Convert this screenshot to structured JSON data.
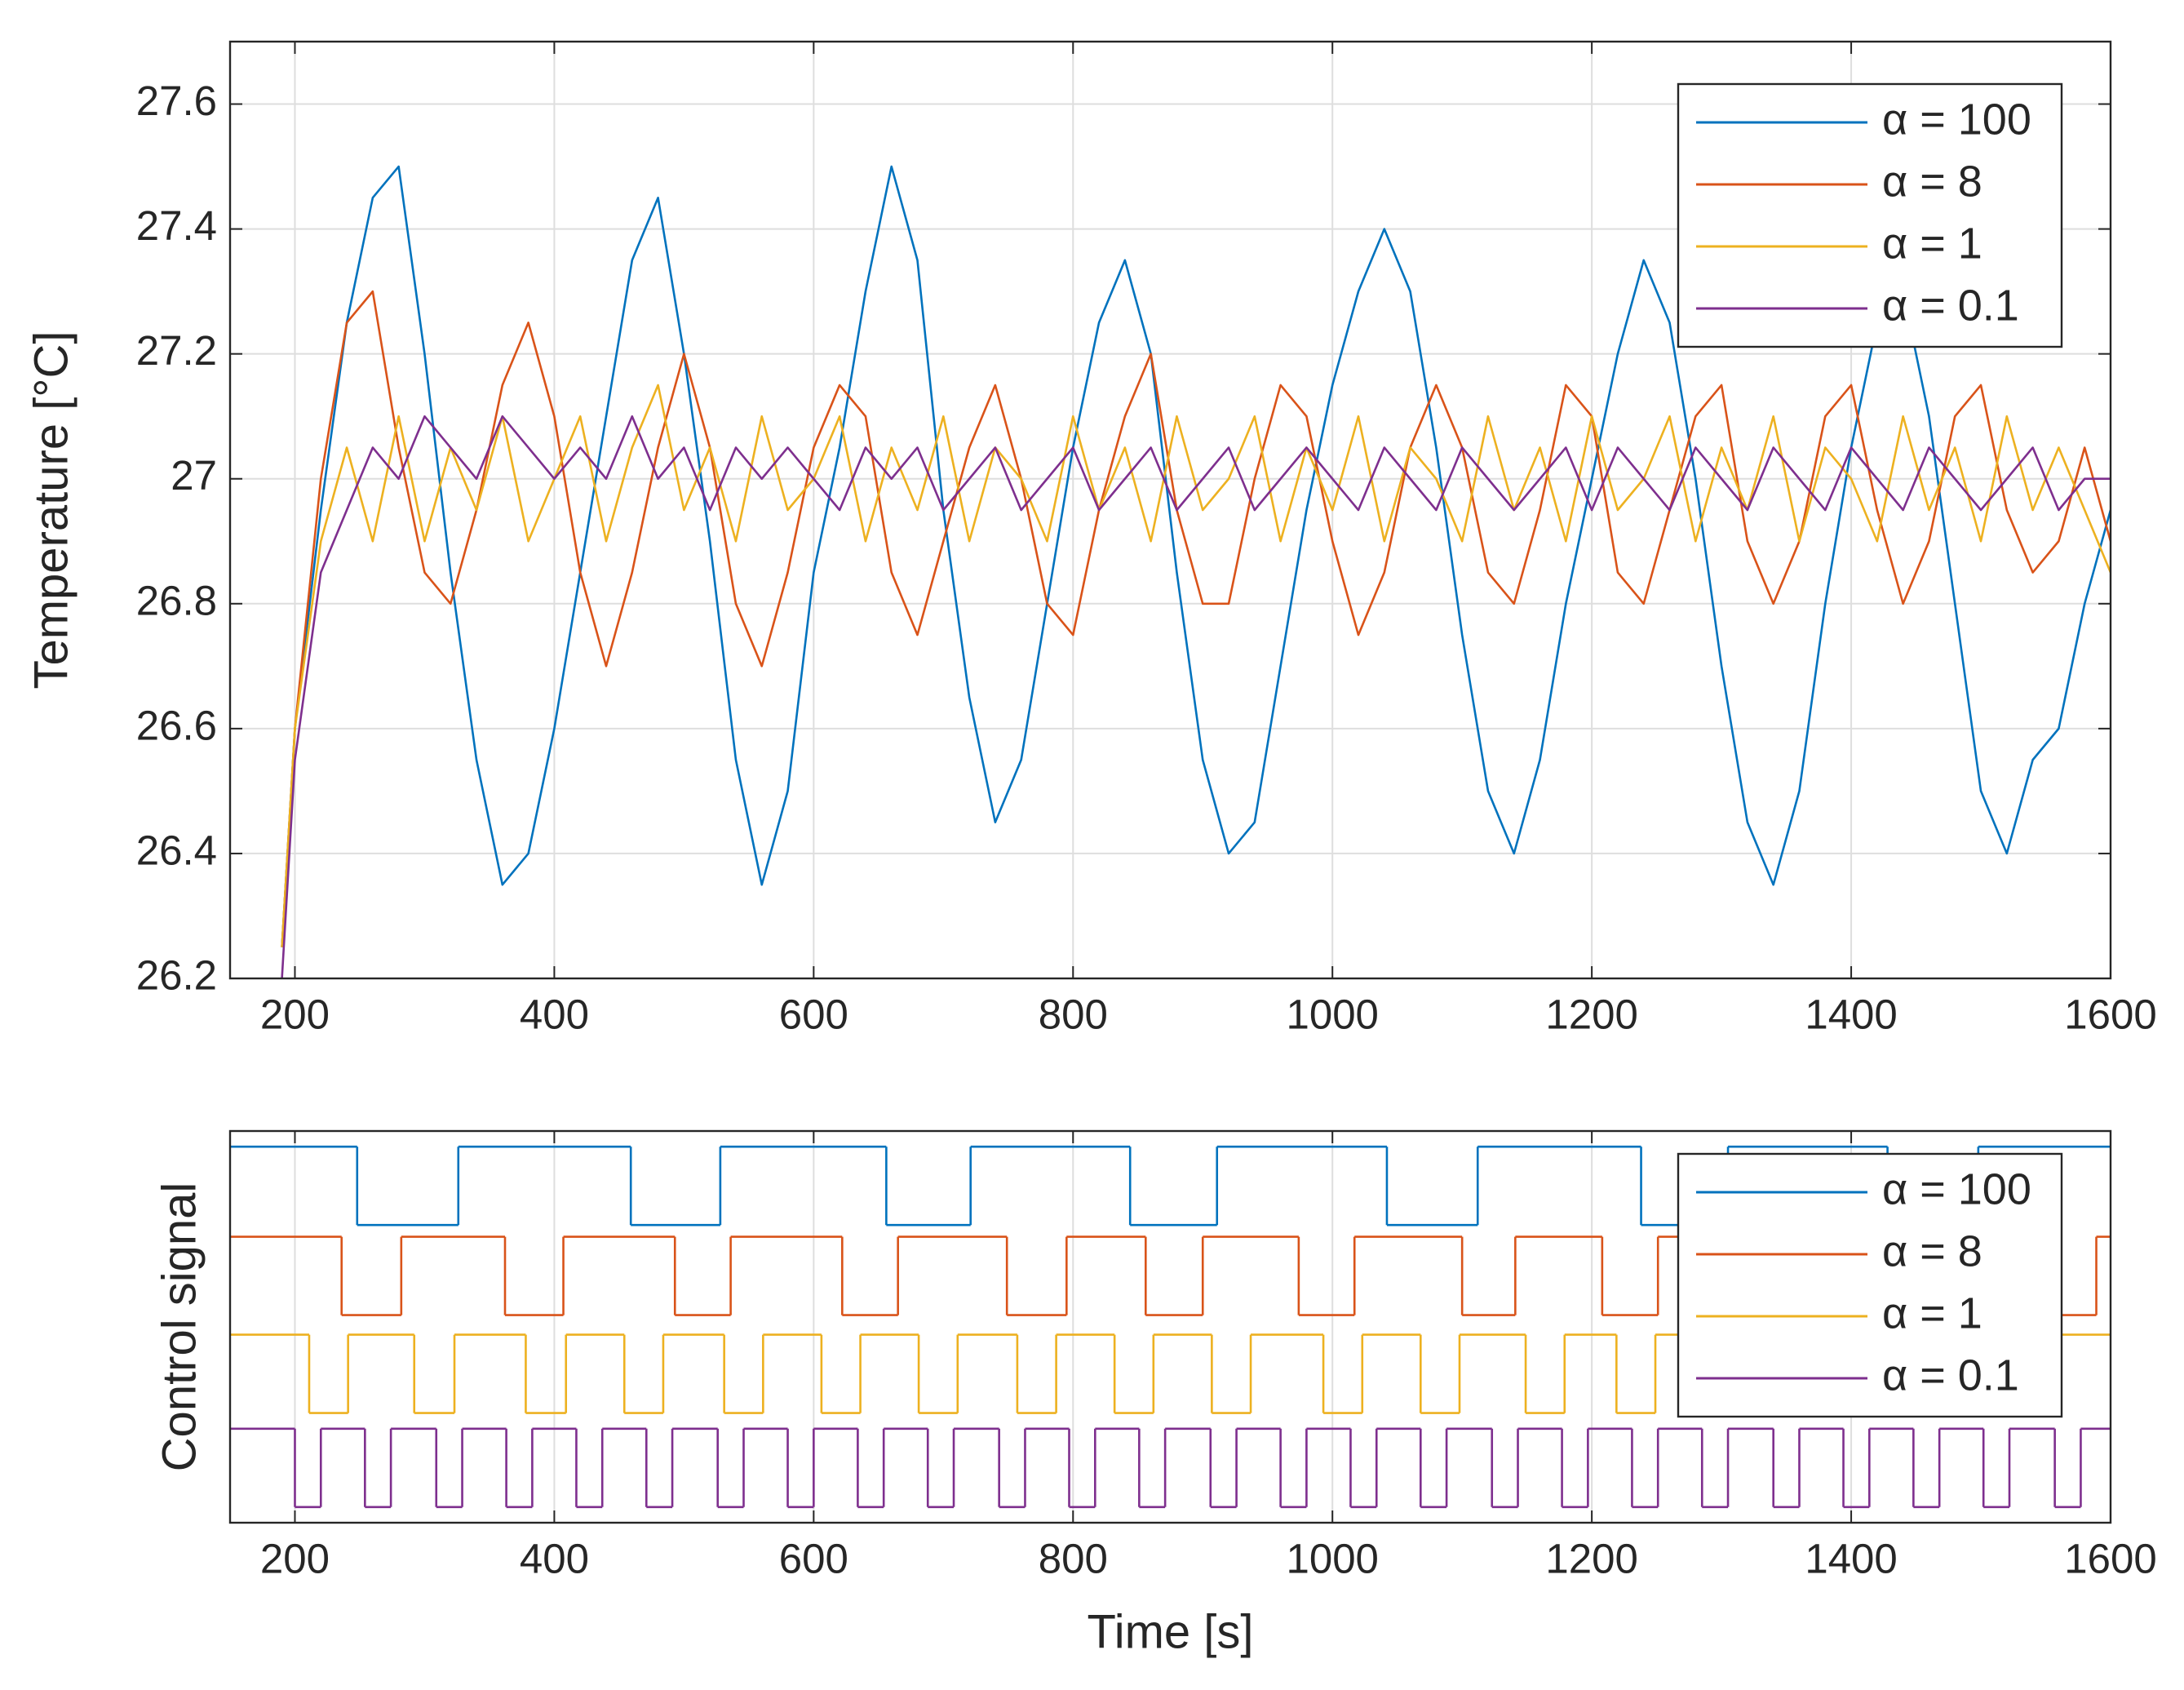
{
  "chart_data": [
    {
      "type": "line",
      "ylabel": "Temperature [°C]",
      "x": [
        190,
        200,
        220,
        240,
        260,
        280,
        300,
        320,
        340,
        360,
        380,
        400,
        420,
        440,
        460,
        480,
        500,
        520,
        540,
        560,
        580,
        600,
        620,
        640,
        660,
        680,
        700,
        720,
        740,
        760,
        780,
        800,
        820,
        840,
        860,
        880,
        900,
        920,
        940,
        960,
        980,
        1000,
        1020,
        1040,
        1060,
        1080,
        1100,
        1120,
        1140,
        1160,
        1180,
        1200,
        1220,
        1240,
        1260,
        1280,
        1300,
        1320,
        1340,
        1360,
        1380,
        1400,
        1420,
        1440,
        1460,
        1480,
        1500,
        1520,
        1540,
        1560,
        1580,
        1600
      ],
      "series": [
        {
          "name": "α = 100",
          "color": "#0072BD",
          "values": [
            26.25,
            26.6,
            26.95,
            27.25,
            27.45,
            27.5,
            27.2,
            26.85,
            26.55,
            26.35,
            26.4,
            26.6,
            26.85,
            27.1,
            27.35,
            27.45,
            27.2,
            26.9,
            26.55,
            26.35,
            26.5,
            26.85,
            27.05,
            27.3,
            27.5,
            27.35,
            26.95,
            26.65,
            26.45,
            26.55,
            26.8,
            27.05,
            27.25,
            27.35,
            27.2,
            26.85,
            26.55,
            26.4,
            26.45,
            26.7,
            26.95,
            27.15,
            27.3,
            27.4,
            27.3,
            27.05,
            26.75,
            26.5,
            26.4,
            26.55,
            26.8,
            27.0,
            27.2,
            27.35,
            27.25,
            27.0,
            26.7,
            26.45,
            26.35,
            26.5,
            26.8,
            27.05,
            27.25,
            27.3,
            27.1,
            26.8,
            26.5,
            26.4,
            26.55,
            26.6,
            26.8,
            26.95
          ]
        },
        {
          "name": "α = 8",
          "color": "#D95319",
          "values": [
            26.25,
            26.6,
            27.0,
            27.25,
            27.3,
            27.05,
            26.85,
            26.8,
            26.95,
            27.15,
            27.25,
            27.1,
            26.85,
            26.7,
            26.85,
            27.05,
            27.2,
            27.05,
            26.8,
            26.7,
            26.85,
            27.05,
            27.15,
            27.1,
            26.85,
            26.75,
            26.9,
            27.05,
            27.15,
            27.0,
            26.8,
            26.75,
            26.95,
            27.1,
            27.2,
            26.95,
            26.8,
            26.8,
            27.0,
            27.15,
            27.1,
            26.9,
            26.75,
            26.85,
            27.05,
            27.15,
            27.05,
            26.85,
            26.8,
            26.95,
            27.15,
            27.1,
            26.85,
            26.8,
            26.95,
            27.1,
            27.15,
            26.9,
            26.8,
            26.9,
            27.1,
            27.15,
            26.95,
            26.8,
            26.9,
            27.1,
            27.15,
            26.95,
            26.85,
            26.9,
            27.05,
            26.9
          ]
        },
        {
          "name": "α = 1",
          "color": "#EDB120",
          "values": [
            26.25,
            26.6,
            26.9,
            27.05,
            26.9,
            27.1,
            26.9,
            27.05,
            26.95,
            27.1,
            26.9,
            27.0,
            27.1,
            26.9,
            27.05,
            27.15,
            26.95,
            27.05,
            26.9,
            27.1,
            26.95,
            27.0,
            27.1,
            26.9,
            27.05,
            26.95,
            27.1,
            26.9,
            27.05,
            27.0,
            26.9,
            27.1,
            26.95,
            27.05,
            26.9,
            27.1,
            26.95,
            27.0,
            27.1,
            26.9,
            27.05,
            26.95,
            27.1,
            26.9,
            27.05,
            27.0,
            26.9,
            27.1,
            26.95,
            27.05,
            26.9,
            27.1,
            26.95,
            27.0,
            27.1,
            26.9,
            27.05,
            26.95,
            27.1,
            26.9,
            27.05,
            27.0,
            26.9,
            27.1,
            26.95,
            27.05,
            26.9,
            27.1,
            26.95,
            27.05,
            26.95,
            26.85
          ]
        },
        {
          "name": "α = 0.1",
          "color": "#7E2F8E",
          "values": [
            26.2,
            26.55,
            26.85,
            26.95,
            27.05,
            27.0,
            27.1,
            27.05,
            27.0,
            27.1,
            27.05,
            27.0,
            27.05,
            27.0,
            27.1,
            27.0,
            27.05,
            26.95,
            27.05,
            27.0,
            27.05,
            27.0,
            26.95,
            27.05,
            27.0,
            27.05,
            26.95,
            27.0,
            27.05,
            26.95,
            27.0,
            27.05,
            26.95,
            27.0,
            27.05,
            26.95,
            27.0,
            27.05,
            26.95,
            27.0,
            27.05,
            27.0,
            26.95,
            27.05,
            27.0,
            26.95,
            27.05,
            27.0,
            26.95,
            27.0,
            27.05,
            26.95,
            27.05,
            27.0,
            26.95,
            27.05,
            27.0,
            26.95,
            27.05,
            27.0,
            26.95,
            27.05,
            27.0,
            26.95,
            27.05,
            27.0,
            26.95,
            27.0,
            27.05,
            26.95,
            27.0,
            27.0
          ]
        }
      ],
      "xlim": [
        150,
        1600
      ],
      "xticks": [
        200,
        400,
        600,
        800,
        1000,
        1200,
        1400,
        1600
      ],
      "ylim": [
        26.2,
        27.7
      ],
      "yticks": [
        26.2,
        26.4,
        26.6,
        26.8,
        27,
        27.2,
        27.4,
        27.6
      ],
      "grid": true,
      "legend": "upper right"
    },
    {
      "type": "step",
      "ylabel": "Control signal",
      "xlabel": "Time [s]",
      "series": [
        {
          "name": "α = 100",
          "color": "#0072BD",
          "x": [
            150,
            248,
            326,
            459,
            528,
            656,
            721,
            844,
            911,
            1042,
            1112,
            1238,
            1305,
            1428,
            1498
          ],
          "values": [
            0.96,
            0.76,
            0.96,
            0.76,
            0.96,
            0.76,
            0.96,
            0.76,
            0.96,
            0.76,
            0.96,
            0.76,
            0.96,
            0.76,
            0.96
          ]
        },
        {
          "name": "α = 8",
          "color": "#D95319",
          "x": [
            150,
            236,
            282,
            362,
            407,
            493,
            536,
            622,
            665,
            749,
            795,
            856,
            900,
            974,
            1017,
            1100,
            1141,
            1208,
            1251,
            1331,
            1374,
            1455,
            1498,
            1543,
            1589
          ],
          "values": [
            0.73,
            0.53,
            0.73,
            0.53,
            0.73,
            0.53,
            0.73,
            0.53,
            0.73,
            0.53,
            0.73,
            0.53,
            0.73,
            0.53,
            0.73,
            0.53,
            0.73,
            0.53,
            0.73,
            0.53,
            0.73,
            0.53,
            0.73,
            0.53,
            0.73
          ]
        },
        {
          "name": "α = 1",
          "color": "#EDB120",
          "x": [
            150,
            211,
            241,
            292,
            323,
            378,
            409,
            454,
            484,
            531,
            561,
            606,
            636,
            681,
            711,
            757,
            787,
            832,
            862,
            907,
            937,
            993,
            1023,
            1068,
            1098,
            1149,
            1179,
            1219,
            1249,
            1294,
            1324,
            1374,
            1404,
            1450,
            1480,
            1519,
            1550
          ],
          "values": [
            0.48,
            0.28,
            0.48,
            0.28,
            0.48,
            0.28,
            0.48,
            0.28,
            0.48,
            0.28,
            0.48,
            0.28,
            0.48,
            0.28,
            0.48,
            0.28,
            0.48,
            0.28,
            0.48,
            0.28,
            0.48,
            0.28,
            0.48,
            0.28,
            0.48,
            0.28,
            0.48,
            0.28,
            0.48,
            0.28,
            0.48,
            0.28,
            0.48,
            0.28,
            0.48,
            0.28,
            0.48
          ]
        },
        {
          "name": "α = 0.1",
          "color": "#7E2F8E",
          "x": [
            150,
            200,
            220,
            254,
            274,
            309,
            329,
            363,
            383,
            417,
            437,
            471,
            491,
            526,
            546,
            580,
            600,
            634,
            654,
            688,
            708,
            743,
            763,
            797,
            817,
            851,
            871,
            906,
            926,
            960,
            980,
            1014,
            1034,
            1068,
            1088,
            1123,
            1143,
            1177,
            1197,
            1231,
            1251,
            1285,
            1305,
            1340,
            1360,
            1394,
            1414,
            1448,
            1468,
            1502,
            1522,
            1557,
            1577
          ],
          "values": [
            0.24,
            0.04,
            0.24,
            0.04,
            0.24,
            0.04,
            0.24,
            0.04,
            0.24,
            0.04,
            0.24,
            0.04,
            0.24,
            0.04,
            0.24,
            0.04,
            0.24,
            0.04,
            0.24,
            0.04,
            0.24,
            0.04,
            0.24,
            0.04,
            0.24,
            0.04,
            0.24,
            0.04,
            0.24,
            0.04,
            0.24,
            0.04,
            0.24,
            0.04,
            0.24,
            0.04,
            0.24,
            0.04,
            0.24,
            0.04,
            0.24,
            0.04,
            0.24,
            0.04,
            0.24,
            0.04,
            0.24,
            0.04,
            0.24,
            0.04,
            0.24,
            0.04,
            0.24
          ]
        }
      ],
      "xlim": [
        150,
        1600
      ],
      "xticks": [
        200,
        400,
        600,
        800,
        1000,
        1200,
        1400,
        1600
      ],
      "ylim": [
        0,
        1
      ],
      "grid": true,
      "legend": "upper right"
    }
  ]
}
